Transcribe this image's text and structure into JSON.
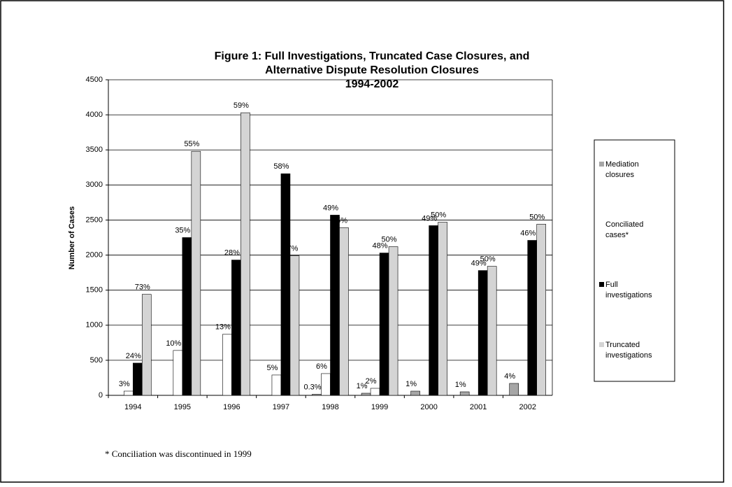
{
  "chart_data": {
    "type": "bar",
    "title": [
      "Figure 1: Full Investigations, Truncated Case Closures, and",
      "Alternative Dispute Resolution Closures",
      "1994-2002"
    ],
    "y_axis_label": "Number of Cases",
    "footnote": "* Conciliation was discontinued in 1999",
    "categories": [
      "1994",
      "1995",
      "1996",
      "1997",
      "1998",
      "1999",
      "2000",
      "2001",
      "2002"
    ],
    "series": [
      {
        "name": "Mediation closures",
        "color": "#a6a6a6",
        "values": [
          0,
          0,
          0,
          0,
          15,
          30,
          60,
          50,
          170
        ],
        "annotations": [
          null,
          null,
          null,
          null,
          "0.3%",
          "1%",
          "1%",
          "1%",
          "4%"
        ]
      },
      {
        "name": "Conciliated cases*",
        "color": "#ffffff",
        "values": [
          60,
          640,
          870,
          290,
          310,
          100,
          0,
          0,
          0
        ],
        "annotations": [
          "3%",
          "10%",
          "13%",
          "5%",
          "6%",
          "2%",
          null,
          null,
          null
        ]
      },
      {
        "name": "Full investigations",
        "color": "#000000",
        "values": [
          460,
          2250,
          1930,
          3160,
          2570,
          2030,
          2420,
          1780,
          2210
        ],
        "annotations": [
          "24%",
          "35%",
          "28%",
          "58%",
          "49%",
          "48%",
          "49%",
          "49%",
          "46%"
        ]
      },
      {
        "name": "Truncated investigations",
        "color": "#d4d4d4",
        "values": [
          1440,
          3480,
          4030,
          1990,
          2390,
          2120,
          2470,
          1840,
          2440
        ],
        "annotations": [
          "73%",
          "55%",
          "59%",
          "37%",
          "45%",
          "50%",
          "50%",
          "50%",
          "50%"
        ]
      }
    ],
    "ylim": [
      0,
      4500
    ],
    "yticks": [
      0,
      500,
      1000,
      1500,
      2000,
      2500,
      3000,
      3500,
      4000,
      4500
    ],
    "grid": true,
    "legend": "right"
  }
}
